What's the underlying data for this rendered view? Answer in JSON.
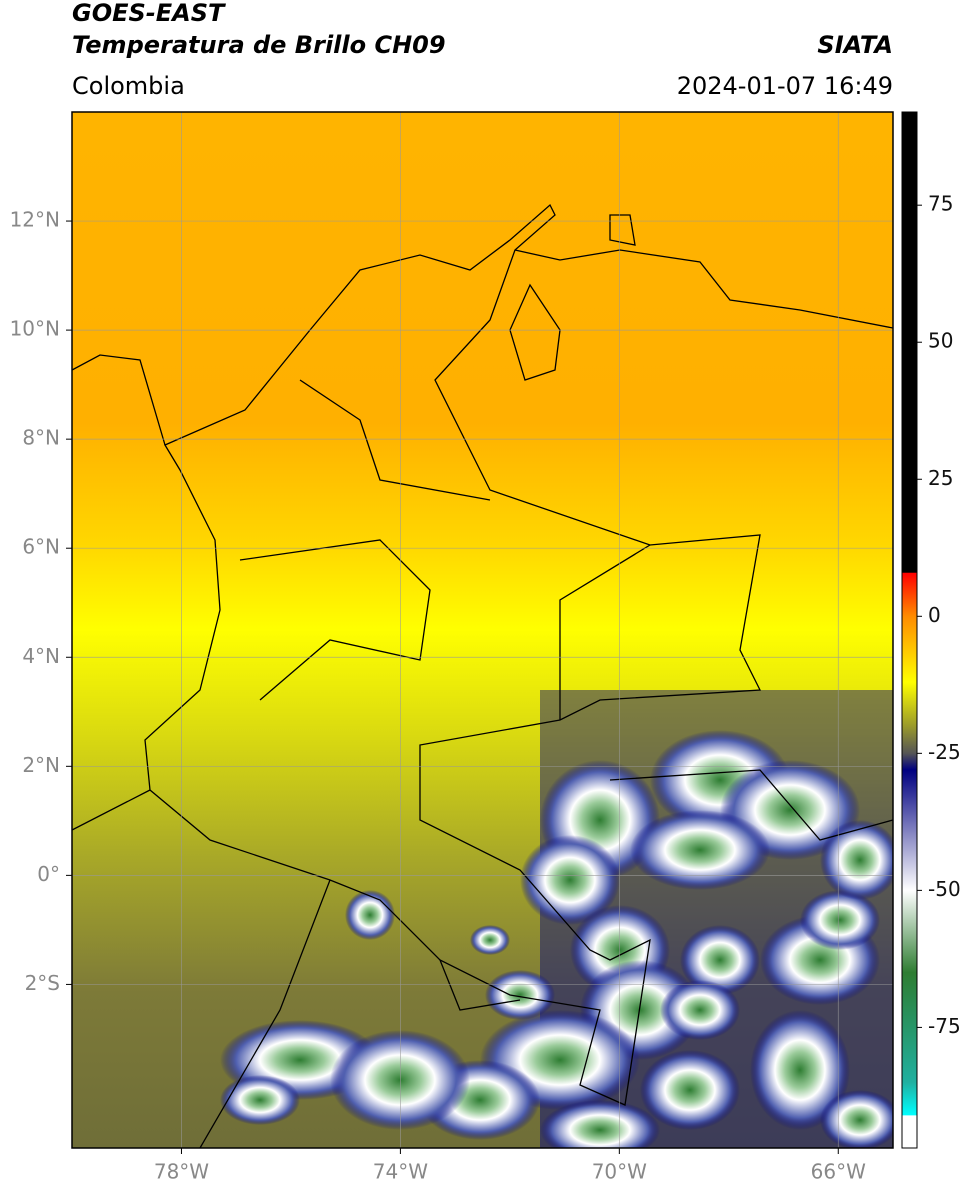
{
  "header": {
    "title": "GOES-EAST",
    "subtitle": "Temperatura de Brillo CH09",
    "source": "SIATA",
    "region": "Colombia",
    "date": "2024-01-07 16:49"
  },
  "map": {
    "xlim": [
      -80,
      -65
    ],
    "ylim": [
      -5,
      14
    ],
    "xticks": [
      {
        "value": -78,
        "label": "78°W"
      },
      {
        "value": -74,
        "label": "74°W"
      },
      {
        "value": -70,
        "label": "70°W"
      },
      {
        "value": -66,
        "label": "66°W"
      }
    ],
    "yticks": [
      {
        "value": 12,
        "label": "12°N"
      },
      {
        "value": 10,
        "label": "10°N"
      },
      {
        "value": 8,
        "label": "8°N"
      },
      {
        "value": 6,
        "label": "6°N"
      },
      {
        "value": 4,
        "label": "4°N"
      },
      {
        "value": 2,
        "label": "2°N"
      },
      {
        "value": 0,
        "label": "0°"
      },
      {
        "value": -2,
        "label": "2°S"
      }
    ],
    "grid": true
  },
  "colorbar": {
    "lim": [
      -97,
      92
    ],
    "ticks": [
      75,
      50,
      25,
      0,
      -25,
      -50,
      -75
    ],
    "colorscale": [
      {
        "value": 92,
        "color": "#000000"
      },
      {
        "value": 8,
        "color": "#000000"
      },
      {
        "value": 7.9,
        "color": "#ff0000"
      },
      {
        "value": 0,
        "color": "#ff8c00"
      },
      {
        "value": -12,
        "color": "#ffff00"
      },
      {
        "value": -20,
        "color": "#9a9a2a"
      },
      {
        "value": -25,
        "color": "#555555"
      },
      {
        "value": -28,
        "color": "#000080"
      },
      {
        "value": -50,
        "color": "#ffffff"
      },
      {
        "value": -65,
        "color": "#2e7d32"
      },
      {
        "value": -85,
        "color": "#20b0a0"
      },
      {
        "value": -91,
        "color": "#00ffff"
      },
      {
        "value": -91.1,
        "color": "#ffffff"
      },
      {
        "value": -97,
        "color": "#ffffff"
      }
    ]
  }
}
